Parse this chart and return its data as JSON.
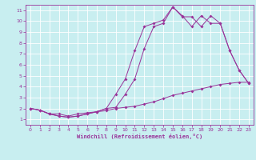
{
  "xlabel": "Windchill (Refroidissement éolien,°C)",
  "background_color": "#c8eef0",
  "grid_color": "#ffffff",
  "line_color": "#993399",
  "xlim": [
    -0.5,
    23.5
  ],
  "ylim": [
    0.5,
    11.5
  ],
  "xticks": [
    0,
    1,
    2,
    3,
    4,
    5,
    6,
    7,
    8,
    9,
    10,
    11,
    12,
    13,
    14,
    15,
    16,
    17,
    18,
    19,
    20,
    21,
    22,
    23
  ],
  "yticks": [
    1,
    2,
    3,
    4,
    5,
    6,
    7,
    8,
    9,
    10,
    11
  ],
  "line1_x": [
    0,
    1,
    2,
    3,
    4,
    5,
    6,
    7,
    8,
    9,
    10,
    11,
    12,
    13,
    14,
    15,
    16,
    17,
    18,
    19,
    20,
    21,
    22,
    23
  ],
  "line1_y": [
    2.0,
    1.85,
    1.5,
    1.5,
    1.3,
    1.5,
    1.6,
    1.7,
    1.8,
    2.0,
    2.1,
    2.2,
    2.4,
    2.6,
    2.9,
    3.2,
    3.4,
    3.6,
    3.8,
    4.0,
    4.2,
    4.3,
    4.4,
    4.4
  ],
  "line2_x": [
    0,
    1,
    2,
    3,
    4,
    5,
    6,
    7,
    8,
    9,
    10,
    11,
    12,
    13,
    14,
    15,
    16,
    17,
    18,
    19,
    20,
    21,
    22,
    23
  ],
  "line2_y": [
    2.0,
    1.85,
    1.5,
    1.3,
    1.2,
    1.3,
    1.5,
    1.7,
    2.0,
    3.3,
    4.7,
    7.3,
    9.5,
    9.8,
    10.1,
    11.3,
    10.5,
    9.5,
    10.5,
    9.8,
    9.8,
    7.3,
    5.5,
    4.3
  ],
  "line3_x": [
    0,
    1,
    2,
    3,
    4,
    5,
    6,
    7,
    8,
    9,
    10,
    11,
    12,
    13,
    14,
    15,
    16,
    17,
    18,
    19,
    20,
    21,
    22,
    23
  ],
  "line3_y": [
    2.0,
    1.85,
    1.5,
    1.3,
    1.2,
    1.3,
    1.5,
    1.7,
    2.0,
    2.1,
    3.3,
    4.7,
    7.5,
    9.5,
    9.8,
    11.3,
    10.4,
    10.4,
    9.5,
    10.5,
    9.8,
    7.3,
    5.5,
    4.3
  ]
}
